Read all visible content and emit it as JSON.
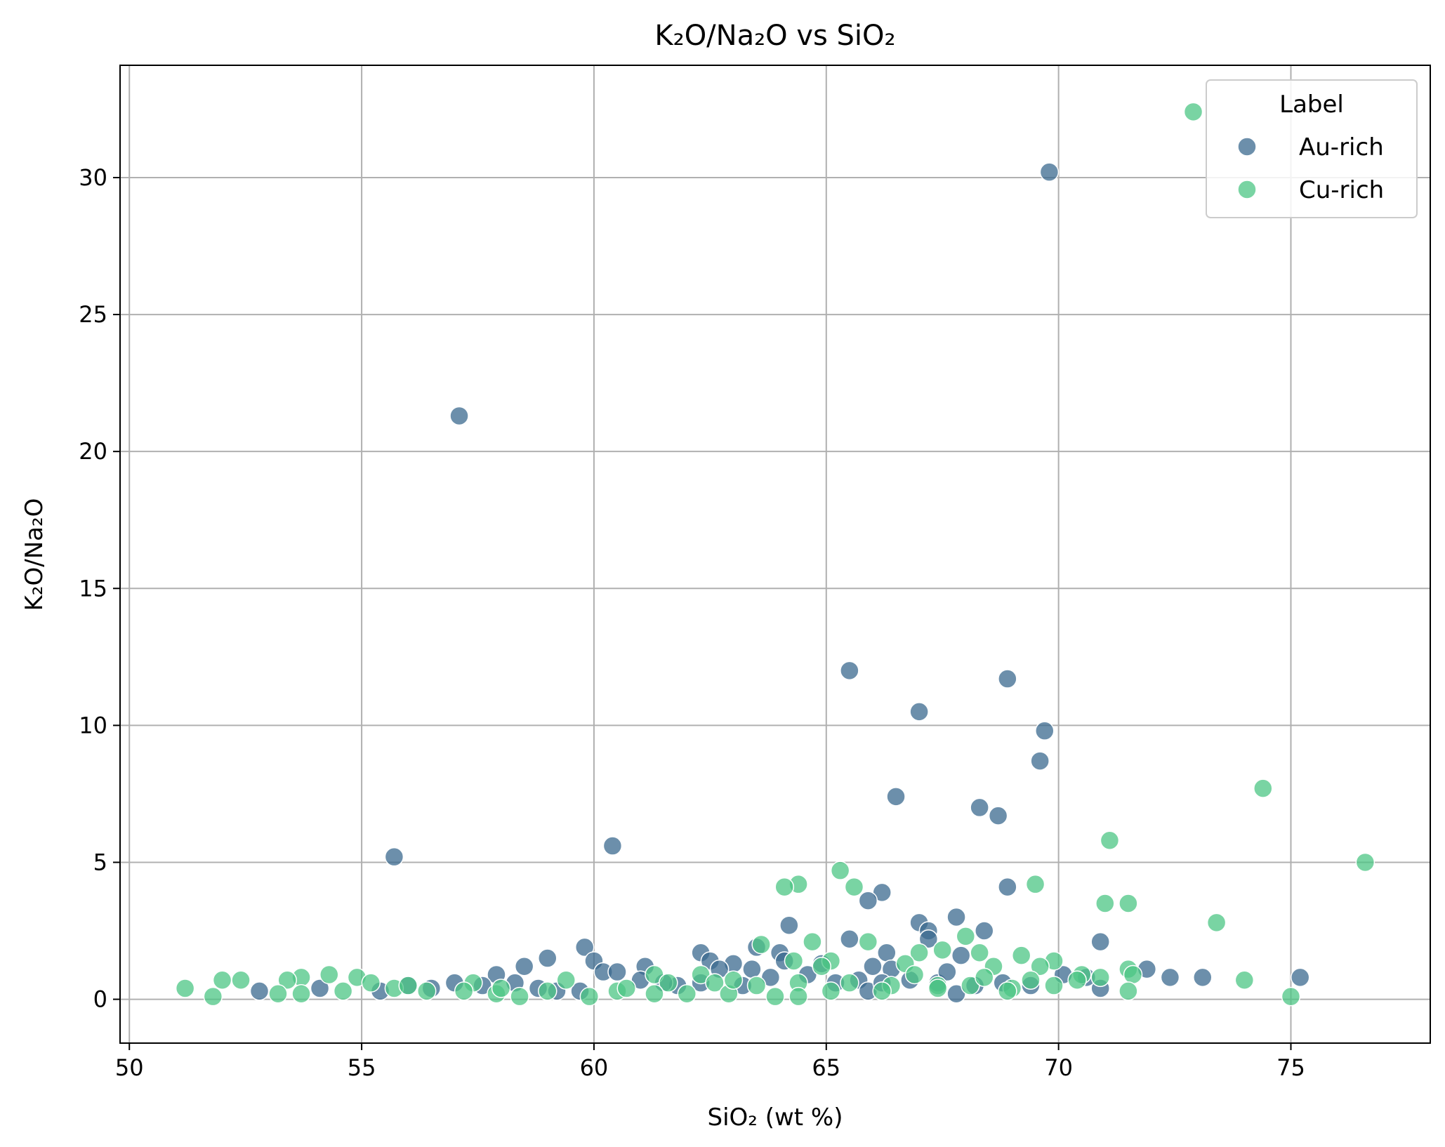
{
  "chart_data": {
    "type": "scatter",
    "title": "K₂O/Na₂O vs SiO₂",
    "xlabel": "SiO₂ (wt %)",
    "ylabel": "K₂O/Na₂O",
    "xlim": [
      49.8,
      78.0
    ],
    "ylim": [
      -1.6,
      34.1
    ],
    "xticks": [
      50,
      55,
      60,
      65,
      70,
      75
    ],
    "yticks": [
      0,
      5,
      10,
      15,
      20,
      25,
      30
    ],
    "grid": true,
    "legend": {
      "title": "Label",
      "placement": "top-right"
    },
    "series": [
      {
        "name": "Au-rich",
        "color": "#3b6a8f",
        "points": [
          [
            69.8,
            30.2
          ],
          [
            57.1,
            21.3
          ],
          [
            65.5,
            12.0
          ],
          [
            68.9,
            11.7
          ],
          [
            67.0,
            10.5
          ],
          [
            69.7,
            9.8
          ],
          [
            69.6,
            8.7
          ],
          [
            66.5,
            7.4
          ],
          [
            68.3,
            7.0
          ],
          [
            68.7,
            6.7
          ],
          [
            60.4,
            5.6
          ],
          [
            55.7,
            5.2
          ],
          [
            68.9,
            4.1
          ],
          [
            66.2,
            3.9
          ],
          [
            65.9,
            3.6
          ],
          [
            67.8,
            3.0
          ],
          [
            67.0,
            2.8
          ],
          [
            64.2,
            2.7
          ],
          [
            67.2,
            2.5
          ],
          [
            68.4,
            2.5
          ],
          [
            67.2,
            2.2
          ],
          [
            65.5,
            2.2
          ],
          [
            70.9,
            2.1
          ],
          [
            59.8,
            1.9
          ],
          [
            63.5,
            1.9
          ],
          [
            66.3,
            1.7
          ],
          [
            62.3,
            1.7
          ],
          [
            64.0,
            1.7
          ],
          [
            59.0,
            1.5
          ],
          [
            62.5,
            1.4
          ],
          [
            60.0,
            1.4
          ],
          [
            63.0,
            1.3
          ],
          [
            61.1,
            1.2
          ],
          [
            58.5,
            1.2
          ],
          [
            62.7,
            1.1
          ],
          [
            60.2,
            1.0
          ],
          [
            60.5,
            1.0
          ],
          [
            71.9,
            1.1
          ],
          [
            66.4,
            1.1
          ],
          [
            67.9,
            1.6
          ],
          [
            57.9,
            0.9
          ],
          [
            72.4,
            0.8
          ],
          [
            73.1,
            0.8
          ],
          [
            75.2,
            0.8
          ],
          [
            70.9,
            0.4
          ],
          [
            52.8,
            0.3
          ],
          [
            55.4,
            0.3
          ],
          [
            56.5,
            0.4
          ],
          [
            57.0,
            0.6
          ],
          [
            57.6,
            0.5
          ],
          [
            58.3,
            0.6
          ],
          [
            59.2,
            0.3
          ],
          [
            59.7,
            0.3
          ],
          [
            61.0,
            0.7
          ],
          [
            61.8,
            0.5
          ],
          [
            62.3,
            0.6
          ],
          [
            63.2,
            0.5
          ],
          [
            63.8,
            0.8
          ],
          [
            64.1,
            1.4
          ],
          [
            64.6,
            0.9
          ],
          [
            65.2,
            0.6
          ],
          [
            65.7,
            0.7
          ],
          [
            65.9,
            0.3
          ],
          [
            66.2,
            0.6
          ],
          [
            66.8,
            0.7
          ],
          [
            67.4,
            0.6
          ],
          [
            67.8,
            0.2
          ],
          [
            68.2,
            0.5
          ],
          [
            68.8,
            0.6
          ],
          [
            69.4,
            0.5
          ],
          [
            70.1,
            0.9
          ],
          [
            70.6,
            0.8
          ],
          [
            54.1,
            0.4
          ],
          [
            56.0,
            0.5
          ],
          [
            58.8,
            0.4
          ],
          [
            61.5,
            0.6
          ],
          [
            63.4,
            1.1
          ],
          [
            64.9,
            1.3
          ],
          [
            66.0,
            1.2
          ],
          [
            67.6,
            1.0
          ]
        ]
      },
      {
        "name": "Cu-rich",
        "color": "#4cc584",
        "points": [
          [
            72.9,
            32.4
          ],
          [
            74.4,
            7.7
          ],
          [
            71.1,
            5.8
          ],
          [
            76.6,
            5.0
          ],
          [
            65.3,
            4.7
          ],
          [
            64.4,
            4.2
          ],
          [
            69.5,
            4.2
          ],
          [
            64.1,
            4.1
          ],
          [
            65.6,
            4.1
          ],
          [
            71.0,
            3.5
          ],
          [
            71.5,
            3.5
          ],
          [
            73.4,
            2.8
          ],
          [
            68.0,
            2.3
          ],
          [
            64.7,
            2.1
          ],
          [
            65.9,
            2.1
          ],
          [
            63.6,
            2.0
          ],
          [
            67.5,
            1.8
          ],
          [
            68.3,
            1.7
          ],
          [
            67.0,
            1.7
          ],
          [
            69.2,
            1.6
          ],
          [
            69.9,
            1.4
          ],
          [
            64.3,
            1.4
          ],
          [
            65.1,
            1.4
          ],
          [
            66.7,
            1.3
          ],
          [
            68.6,
            1.2
          ],
          [
            69.6,
            1.2
          ],
          [
            71.5,
            1.1
          ],
          [
            61.3,
            0.9
          ],
          [
            62.3,
            0.9
          ],
          [
            54.3,
            0.9
          ],
          [
            53.7,
            0.8
          ],
          [
            54.9,
            0.8
          ],
          [
            70.5,
            0.9
          ],
          [
            70.9,
            0.8
          ],
          [
            71.6,
            0.9
          ],
          [
            74.0,
            0.7
          ],
          [
            52.0,
            0.7
          ],
          [
            52.4,
            0.7
          ],
          [
            53.4,
            0.7
          ],
          [
            55.2,
            0.6
          ],
          [
            57.4,
            0.6
          ],
          [
            59.4,
            0.7
          ],
          [
            61.6,
            0.6
          ],
          [
            62.6,
            0.6
          ],
          [
            63.5,
            0.5
          ],
          [
            64.4,
            0.6
          ],
          [
            65.5,
            0.6
          ],
          [
            66.4,
            0.5
          ],
          [
            67.4,
            0.5
          ],
          [
            68.1,
            0.5
          ],
          [
            69.0,
            0.4
          ],
          [
            69.9,
            0.5
          ],
          [
            70.4,
            0.7
          ],
          [
            51.2,
            0.4
          ],
          [
            51.8,
            0.1
          ],
          [
            53.2,
            0.2
          ],
          [
            53.7,
            0.2
          ],
          [
            54.6,
            0.3
          ],
          [
            55.7,
            0.4
          ],
          [
            56.4,
            0.3
          ],
          [
            57.2,
            0.3
          ],
          [
            57.9,
            0.2
          ],
          [
            58.4,
            0.1
          ],
          [
            59.0,
            0.3
          ],
          [
            59.9,
            0.1
          ],
          [
            60.5,
            0.3
          ],
          [
            61.3,
            0.2
          ],
          [
            62.0,
            0.2
          ],
          [
            62.9,
            0.2
          ],
          [
            63.9,
            0.1
          ],
          [
            64.4,
            0.1
          ],
          [
            65.1,
            0.3
          ],
          [
            66.2,
            0.3
          ],
          [
            67.4,
            0.4
          ],
          [
            68.9,
            0.3
          ],
          [
            71.5,
            0.3
          ],
          [
            75.0,
            0.1
          ],
          [
            56.0,
            0.5
          ],
          [
            58.0,
            0.4
          ],
          [
            60.7,
            0.4
          ],
          [
            63.0,
            0.7
          ],
          [
            64.9,
            1.2
          ],
          [
            66.9,
            0.9
          ],
          [
            68.4,
            0.8
          ],
          [
            69.4,
            0.7
          ]
        ]
      }
    ]
  }
}
